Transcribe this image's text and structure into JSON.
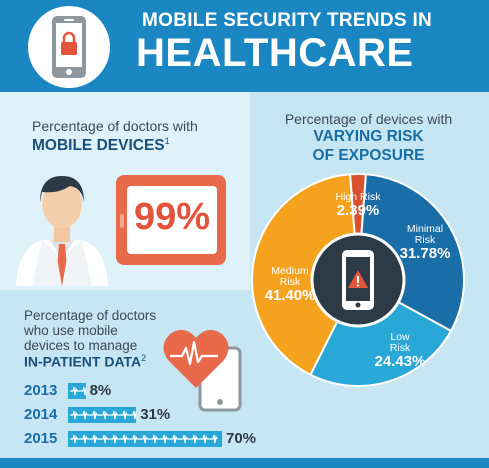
{
  "header": {
    "title_line1": "MOBILE SECURITY TRENDS IN",
    "title_line2": "HEALTHCARE"
  },
  "doctors_devices": {
    "label_line1": "Percentage of doctors with",
    "label_line2": "MOBILE DEVICES",
    "footnote": "1",
    "value": "99%"
  },
  "risk": {
    "label_line1": "Percentage of devices with",
    "label_line2": "VARYING RISK",
    "label_line3": "OF EXPOSURE"
  },
  "inpatient": {
    "label_line1": "Percentage of doctors",
    "label_line2": "who use mobile",
    "label_line3": "devices to manage",
    "label_line4": "IN-PATIENT DATA",
    "footnote": "2"
  },
  "chart_data": [
    {
      "type": "pie",
      "title": "",
      "slices": [
        {
          "name": "High Risk",
          "value": 2.39,
          "label": "2.39%",
          "color": "#d9502f"
        },
        {
          "name": "Minimal Risk",
          "value": 31.78,
          "label": "31.78%",
          "color": "#1a6ea8"
        },
        {
          "name": "Low Risk",
          "value": 24.43,
          "label": "24.43%",
          "color": "#29a8d8"
        },
        {
          "name": "Medium Risk",
          "value": 41.4,
          "label": "41.40%",
          "color": "#f5a31f"
        }
      ]
    },
    {
      "type": "bar",
      "title": "",
      "categories": [
        "2013",
        "2014",
        "2015"
      ],
      "values": [
        8,
        31,
        70
      ],
      "value_labels": [
        "8%",
        "31%",
        "70%"
      ],
      "color": "#29a8d8",
      "xlim": [
        0,
        100
      ]
    }
  ],
  "colors": {
    "header_bg": "#1a86c2",
    "page_bg": "#c7e6f3",
    "accent_red": "#e2553a",
    "accent_orange": "#f5a31f"
  },
  "icons": {
    "header_icon": "locked-phone-icon",
    "doctor_icon": "doctor-icon",
    "tablet_icon": "tablet-icon",
    "warning_phone_icon": "warning-phone-icon",
    "heart_icon": "heart-heartbeat-icon"
  }
}
